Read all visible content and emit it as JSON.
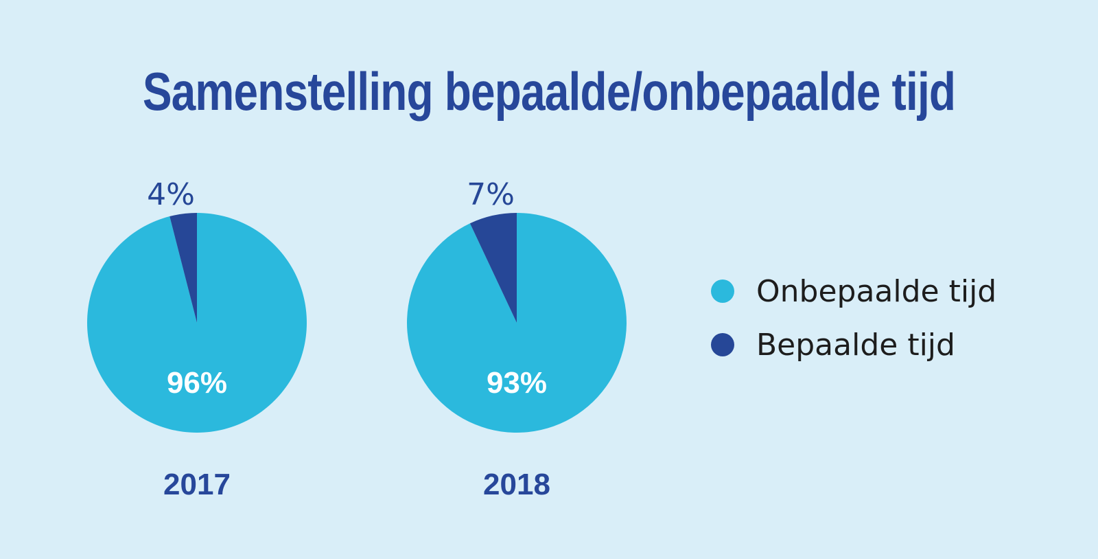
{
  "title": "Samenstelling bepaalde/onbepaalde tijd",
  "colors": {
    "background": "#d9eef8",
    "onbepaalde": "#2bb9dd",
    "bepaalde": "#264797",
    "title": "#27479a",
    "inside_label": "#ffffff"
  },
  "legend": [
    {
      "label": "Onbepaalde tijd",
      "color": "#2bb9dd"
    },
    {
      "label": "Bepaalde tijd",
      "color": "#264797"
    }
  ],
  "chart_data": [
    {
      "type": "pie",
      "title": "2017",
      "categories": [
        "Onbepaalde tijd",
        "Bepaalde tijd"
      ],
      "values": [
        96,
        4
      ],
      "data_labels": [
        "96%",
        "4%"
      ],
      "colors": [
        "#2bb9dd",
        "#264797"
      ]
    },
    {
      "type": "pie",
      "title": "2018",
      "categories": [
        "Onbepaalde tijd",
        "Bepaalde tijd"
      ],
      "values": [
        93,
        7
      ],
      "data_labels": [
        "93%",
        "7%"
      ],
      "colors": [
        "#2bb9dd",
        "#264797"
      ]
    }
  ]
}
